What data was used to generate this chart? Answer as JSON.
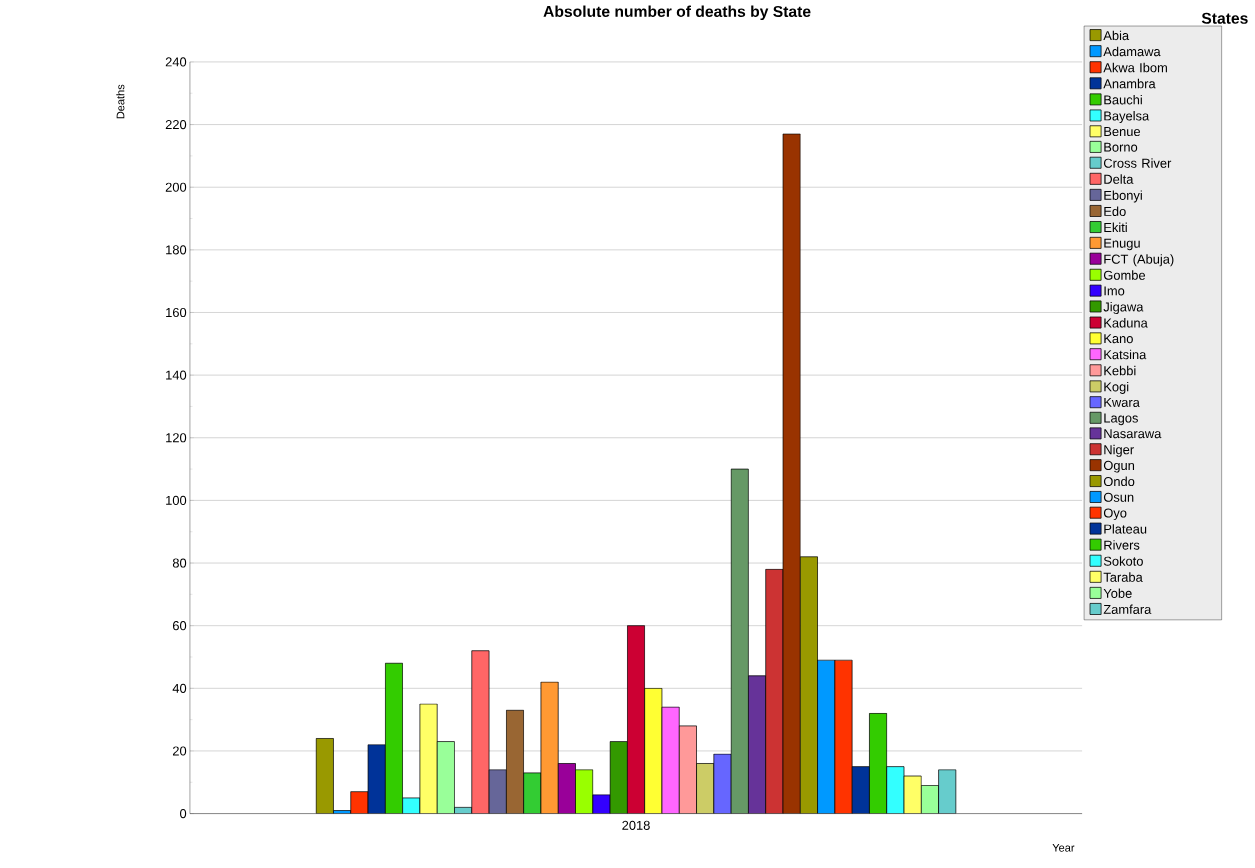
{
  "chart_data": {
    "type": "bar",
    "title": "Absolute number of deaths by State",
    "xlabel": "Year",
    "ylabel": "Deaths",
    "legend_title": "States",
    "categories": [
      "2018"
    ],
    "ylim": [
      0,
      240
    ],
    "yticks": [
      0,
      20,
      40,
      60,
      80,
      100,
      120,
      140,
      160,
      180,
      200,
      220,
      240
    ],
    "grid": "y",
    "legend": "right",
    "series": [
      {
        "name": "Abia",
        "color": "#999900",
        "values": [
          24
        ]
      },
      {
        "name": "Adamawa",
        "color": "#0099ff",
        "values": [
          1
        ]
      },
      {
        "name": "Akwa Ibom",
        "color": "#ff3300",
        "values": [
          7
        ]
      },
      {
        "name": "Anambra",
        "color": "#003399",
        "values": [
          22
        ]
      },
      {
        "name": "Bauchi",
        "color": "#33cc00",
        "values": [
          48
        ]
      },
      {
        "name": "Bayelsa",
        "color": "#33ffff",
        "values": [
          5
        ]
      },
      {
        "name": "Benue",
        "color": "#ffff66",
        "values": [
          35
        ]
      },
      {
        "name": "Borno",
        "color": "#99ff99",
        "values": [
          23
        ]
      },
      {
        "name": "Cross River",
        "color": "#66cccc",
        "values": [
          2
        ]
      },
      {
        "name": "Delta",
        "color": "#ff6666",
        "values": [
          52
        ]
      },
      {
        "name": "Ebonyi",
        "color": "#666699",
        "values": [
          14
        ]
      },
      {
        "name": "Edo",
        "color": "#996633",
        "values": [
          33
        ]
      },
      {
        "name": "Ekiti",
        "color": "#33cc33",
        "values": [
          13
        ]
      },
      {
        "name": "Enugu",
        "color": "#ff9933",
        "values": [
          42
        ]
      },
      {
        "name": "FCT (Abuja)",
        "color": "#990099",
        "values": [
          16
        ]
      },
      {
        "name": "Gombe",
        "color": "#99ff00",
        "values": [
          14
        ]
      },
      {
        "name": "Imo",
        "color": "#3300ff",
        "values": [
          6
        ]
      },
      {
        "name": "Jigawa",
        "color": "#339900",
        "values": [
          23
        ]
      },
      {
        "name": "Kaduna",
        "color": "#cc0033",
        "values": [
          60
        ]
      },
      {
        "name": "Kano",
        "color": "#ffff33",
        "values": [
          40
        ]
      },
      {
        "name": "Katsina",
        "color": "#ff66ff",
        "values": [
          34
        ]
      },
      {
        "name": "Kebbi",
        "color": "#ff9999",
        "values": [
          28
        ]
      },
      {
        "name": "Kogi",
        "color": "#cccc66",
        "values": [
          16
        ]
      },
      {
        "name": "Kwara",
        "color": "#6666ff",
        "values": [
          19
        ]
      },
      {
        "name": "Lagos",
        "color": "#669966",
        "values": [
          110
        ]
      },
      {
        "name": "Nasarawa",
        "color": "#663399",
        "values": [
          44
        ]
      },
      {
        "name": "Niger",
        "color": "#cc3333",
        "values": [
          78
        ]
      },
      {
        "name": "Ogun",
        "color": "#993300",
        "values": [
          217
        ]
      },
      {
        "name": "Ondo",
        "color": "#999900",
        "values": [
          82
        ]
      },
      {
        "name": "Osun",
        "color": "#0099ff",
        "values": [
          49
        ]
      },
      {
        "name": "Oyo",
        "color": "#ff3300",
        "values": [
          49
        ]
      },
      {
        "name": "Plateau",
        "color": "#003399",
        "values": [
          15
        ]
      },
      {
        "name": "Rivers",
        "color": "#33cc00",
        "values": [
          32
        ]
      },
      {
        "name": "Sokoto",
        "color": "#33ffff",
        "values": [
          15
        ]
      },
      {
        "name": "Taraba",
        "color": "#ffff66",
        "values": [
          12
        ]
      },
      {
        "name": "Yobe",
        "color": "#99ff99",
        "values": [
          9
        ]
      },
      {
        "name": "Zamfara",
        "color": "#66cccc",
        "values": [
          14
        ]
      }
    ]
  }
}
